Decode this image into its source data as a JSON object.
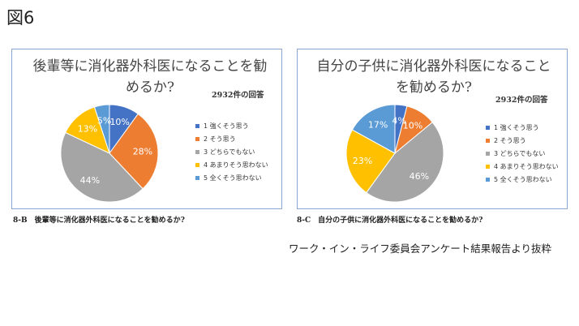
{
  "figure_label": "図6",
  "source_note": "ワーク・イン・ライフ委員会アンケート結果報告より抜粋",
  "legend_labels": [
    "1 強くそう思う",
    "2 そう思う",
    "3 どちらでもない",
    "4 あまりそう思わない",
    "5 全くそう思わない"
  ],
  "colors": [
    "#4472c4",
    "#ed7d31",
    "#a5a5a5",
    "#ffc000",
    "#5b9bd5"
  ],
  "chart_data": [
    {
      "type": "pie",
      "id": "8-B",
      "title_lines": [
        "後輩等に消化器外科医になることを勧",
        "めるか?"
      ],
      "responses": "2932件の回答",
      "categories": [
        "1 強くそう思う",
        "2 そう思う",
        "3 どちらでもない",
        "4 あまりそう思わない",
        "5 全くそう思わない"
      ],
      "values": [
        10,
        28,
        44,
        13,
        5
      ],
      "data_labels": [
        "10%",
        "28%",
        "44%",
        "13%",
        "5%"
      ],
      "caption": "8-B　後輩等に消化器外科医になることを勧めるか?"
    },
    {
      "type": "pie",
      "id": "8-C",
      "title_lines": [
        "自分の子供に消化器外科医になること",
        "を勧めるか?"
      ],
      "responses": "2932件の回答",
      "categories": [
        "1 強くそう思う",
        "2 そう思う",
        "3 どちらでもない",
        "4 あまりそう思わない",
        "5 全くそう思わない"
      ],
      "values": [
        4,
        10,
        46,
        23,
        17
      ],
      "data_labels": [
        "4%",
        "10%",
        "46%",
        "23%",
        "17%"
      ],
      "caption": "8-C　自分の子供に消化器外科医になることを勧めるか?"
    }
  ]
}
